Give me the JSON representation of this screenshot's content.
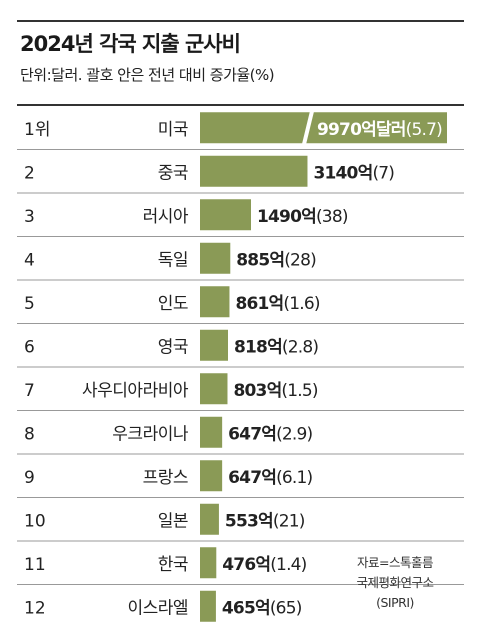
{
  "title": "2024년 각국 지출 군사비",
  "subtitle": "단위:달러. 괄호 안은 전년 대비 증가율(%)",
  "source": [
    "자료=스톡홀름",
    "국제평화연구소",
    "(SIPRI)"
  ],
  "bar_color": "#8a9a56",
  "row_line_color": "#999999",
  "chart_data": {
    "type": "bar",
    "orientation": "horizontal",
    "ranks": [
      "1위",
      "2",
      "3",
      "4",
      "5",
      "6",
      "7",
      "8",
      "9",
      "10",
      "11",
      "12"
    ],
    "categories": [
      "미국",
      "중국",
      "러시아",
      "독일",
      "인도",
      "영국",
      "사우디아라비아",
      "우크라이나",
      "프랑스",
      "일본",
      "한국",
      "이스라엘"
    ],
    "values": [
      9970,
      3140,
      1490,
      885,
      861,
      818,
      803,
      647,
      647,
      553,
      476,
      465
    ],
    "value_labels": [
      "9970억달러",
      "3140억",
      "1490억",
      "885억",
      "861억",
      "818억",
      "803억",
      "647억",
      "647억",
      "553억",
      "476억",
      "465억"
    ],
    "growth_labels": [
      "(5.7)",
      "(7)",
      "(38)",
      "(28)",
      "(1.6)",
      "(2.8)",
      "(1.5)",
      "(2.9)",
      "(6.1)",
      "(21)",
      "(1.4)",
      "(65)"
    ],
    "first_bar_truncated": true
  }
}
